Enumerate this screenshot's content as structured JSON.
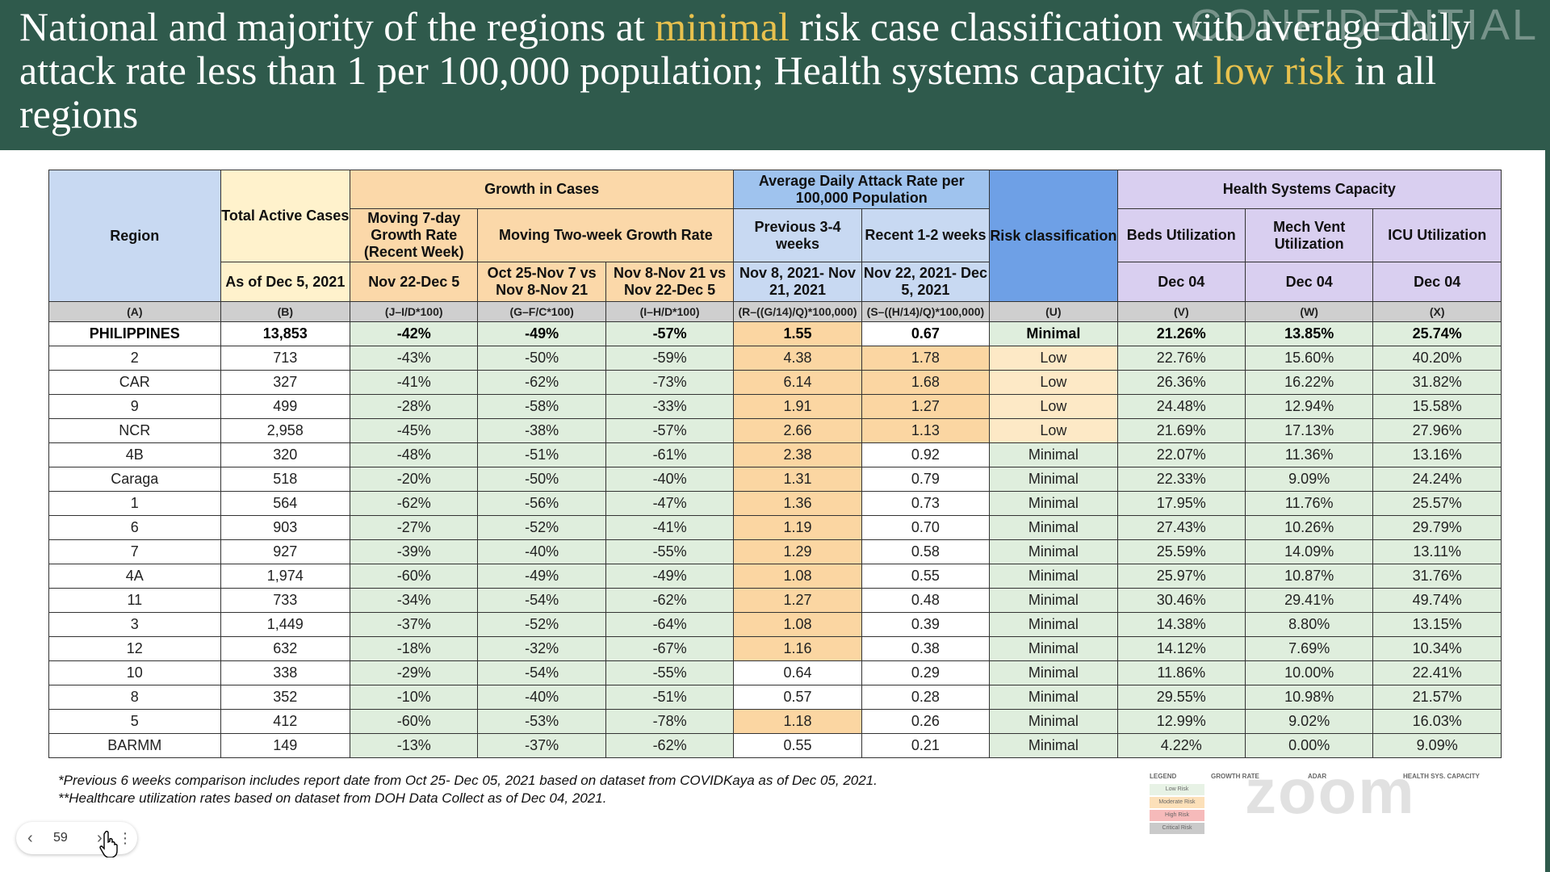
{
  "header": {
    "title_part1": "National and majority of the regions at ",
    "title_hl1": "minimal",
    "title_part2": " risk case classification with average daily attack rate less than 1 per 100,000 population; Health systems capacity at ",
    "title_hl2": "low risk",
    "title_part3": " in all regions",
    "watermark": "CONFIDENTIAL"
  },
  "table": {
    "h_region": "Region",
    "h_total_active": "Total Active Cases",
    "h_growth": "Growth in Cases",
    "h_adar": "Average Daily Attack Rate per 100,000 Population",
    "h_risk": "Risk classification",
    "h_hsc": "Health Systems Capacity",
    "h_moving7": "Moving 7-day Growth Rate (Recent Week)",
    "h_moving2w": "Moving Two-week Growth Rate",
    "h_prev": "Previous 3-4 weeks",
    "h_recent": "Recent 1-2 weeks",
    "h_beds": "Beds Utilization",
    "h_mechvent": "Mech Vent Utilization",
    "h_icu": "ICU Utilization",
    "d_asof": "As of Dec 5, 2021",
    "d_nov22dec5": "Nov 22-Dec 5",
    "d_oct25": "Oct 25-Nov 7 vs Nov 8-Nov 21",
    "d_nov8": "Nov 8-Nov 21 vs Nov 22-Dec 5",
    "d_prev": "Nov 8, 2021- Nov 21, 2021",
    "d_recent": "Nov 22, 2021- Dec 5, 2021",
    "d_beds": "Dec 04",
    "d_mv": "Dec 04",
    "d_icu": "Dec 04",
    "codes": [
      "(A)",
      "(B)",
      "(J–I/D*100)",
      "(G–F/C*100)",
      "(I–H/D*100)",
      "(R–((G/14)/Q)*100,000)",
      "(S–((H/14)/Q)*100,000)",
      "(U)",
      "(V)",
      "(W)",
      "(X)"
    ],
    "rows": [
      [
        "PHILIPPINES",
        "13,853",
        "-42%",
        "-49%",
        "-57%",
        "1.55",
        "0.67",
        "Minimal",
        "21.26%",
        "13.85%",
        "25.74%"
      ],
      [
        "2",
        "713",
        "-43%",
        "-50%",
        "-59%",
        "4.38",
        "1.78",
        "Low",
        "22.76%",
        "15.60%",
        "40.20%"
      ],
      [
        "CAR",
        "327",
        "-41%",
        "-62%",
        "-73%",
        "6.14",
        "1.68",
        "Low",
        "26.36%",
        "16.22%",
        "31.82%"
      ],
      [
        "9",
        "499",
        "-28%",
        "-58%",
        "-33%",
        "1.91",
        "1.27",
        "Low",
        "24.48%",
        "12.94%",
        "15.58%"
      ],
      [
        "NCR",
        "2,958",
        "-45%",
        "-38%",
        "-57%",
        "2.66",
        "1.13",
        "Low",
        "21.69%",
        "17.13%",
        "27.96%"
      ],
      [
        "4B",
        "320",
        "-48%",
        "-51%",
        "-61%",
        "2.38",
        "0.92",
        "Minimal",
        "22.07%",
        "11.36%",
        "13.16%"
      ],
      [
        "Caraga",
        "518",
        "-20%",
        "-50%",
        "-40%",
        "1.31",
        "0.79",
        "Minimal",
        "22.33%",
        "9.09%",
        "24.24%"
      ],
      [
        "1",
        "564",
        "-62%",
        "-56%",
        "-47%",
        "1.36",
        "0.73",
        "Minimal",
        "17.95%",
        "11.76%",
        "25.57%"
      ],
      [
        "6",
        "903",
        "-27%",
        "-52%",
        "-41%",
        "1.19",
        "0.70",
        "Minimal",
        "27.43%",
        "10.26%",
        "29.79%"
      ],
      [
        "7",
        "927",
        "-39%",
        "-40%",
        "-55%",
        "1.29",
        "0.58",
        "Minimal",
        "25.59%",
        "14.09%",
        "13.11%"
      ],
      [
        "4A",
        "1,974",
        "-60%",
        "-49%",
        "-49%",
        "1.08",
        "0.55",
        "Minimal",
        "25.97%",
        "10.87%",
        "31.76%"
      ],
      [
        "11",
        "733",
        "-34%",
        "-54%",
        "-62%",
        "1.27",
        "0.48",
        "Minimal",
        "30.46%",
        "29.41%",
        "49.74%"
      ],
      [
        "3",
        "1,449",
        "-37%",
        "-52%",
        "-64%",
        "1.08",
        "0.39",
        "Minimal",
        "14.38%",
        "8.80%",
        "13.15%"
      ],
      [
        "12",
        "632",
        "-18%",
        "-32%",
        "-67%",
        "1.16",
        "0.38",
        "Minimal",
        "14.12%",
        "7.69%",
        "10.34%"
      ],
      [
        "10",
        "338",
        "-29%",
        "-54%",
        "-55%",
        "0.64",
        "0.29",
        "Minimal",
        "11.86%",
        "10.00%",
        "22.41%"
      ],
      [
        "8",
        "352",
        "-10%",
        "-40%",
        "-51%",
        "0.57",
        "0.28",
        "Minimal",
        "29.55%",
        "10.98%",
        "21.57%"
      ],
      [
        "5",
        "412",
        "-60%",
        "-53%",
        "-78%",
        "1.18",
        "0.26",
        "Minimal",
        "12.99%",
        "9.02%",
        "16.03%"
      ],
      [
        "BARMM",
        "149",
        "-13%",
        "-37%",
        "-62%",
        "0.55",
        "0.21",
        "Minimal",
        "4.22%",
        "0.00%",
        "9.09%"
      ]
    ]
  },
  "footnotes": {
    "line1": "*Previous 6 weeks comparison includes report date from Oct 25- Dec 05, 2021 based on dataset from COVIDKaya as of Dec 05, 2021.",
    "line2": "**Healthcare utilization rates based on dataset from DOH Data Collect as of Dec 04, 2021."
  },
  "legend": {
    "title": "LEGEND",
    "growth": "GROWTH RATE",
    "adar": "ADAR",
    "hsc": "HEALTH SYS. CAPACITY",
    "low": "Low Risk",
    "moderate": "Moderate Risk",
    "high": "High Risk",
    "critical": "Critical Risk"
  },
  "overlay": {
    "zoom": "zoom"
  },
  "pager": {
    "page": "59"
  },
  "colors": {
    "header_bg": "#2f5a4c",
    "highlight": "#e8c14e",
    "low_risk": "#dfeedd",
    "moderate_risk": "#fbd6a2"
  }
}
